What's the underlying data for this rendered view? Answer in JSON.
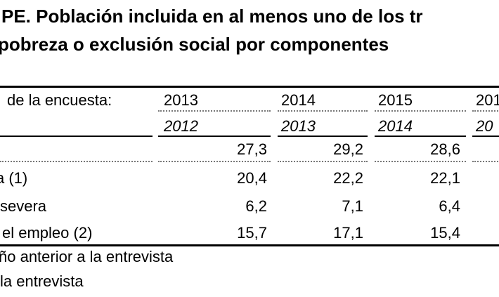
{
  "title": {
    "line1": "PE. Población incluida en al menos uno de los tr",
    "line2": "pobreza o exclusión social por componentes"
  },
  "table": {
    "header_label": "de la encuesta:",
    "survey_years": [
      "2013",
      "2014",
      "2015",
      "201"
    ],
    "income_years": [
      "2012",
      "2013",
      "2014",
      "20"
    ],
    "rows": [
      {
        "label": "",
        "values": [
          "27,3",
          "29,2",
          "28,6"
        ]
      },
      {
        "label": "a (1)",
        "values": [
          "20,4",
          "22,2",
          "22,1"
        ]
      },
      {
        "label": "severa",
        "values": [
          "6,2",
          "7,1",
          "6,4"
        ]
      },
      {
        "label": "el empleo (2)",
        "values": [
          "15,7",
          "17,1",
          "15,4"
        ]
      }
    ]
  },
  "footnotes": [
    "ño anterior a la entrevista",
    "la entrevista"
  ]
}
